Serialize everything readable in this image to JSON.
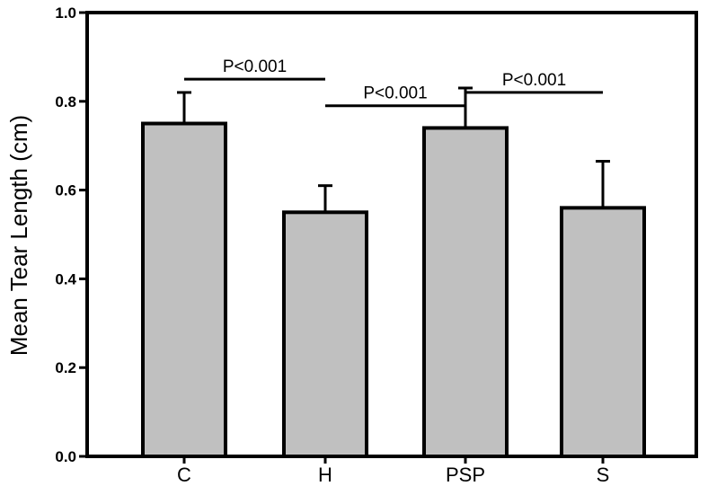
{
  "chart_data": {
    "type": "bar",
    "title": "",
    "xlabel": "",
    "ylabel": "Mean Tear Length (cm)",
    "ylim": [
      0,
      1.0
    ],
    "yticks": [
      "0.0",
      "0.2",
      "0.4",
      "0.6",
      "0.8",
      "1.0"
    ],
    "categories": [
      "C",
      "H",
      "PSP",
      "S"
    ],
    "values": [
      0.75,
      0.55,
      0.74,
      0.56
    ],
    "errors": [
      0.07,
      0.06,
      0.09,
      0.105
    ],
    "bar_color": "#c0c0c0",
    "grid": false,
    "annotations": [
      {
        "text": "P<0.001",
        "from": 0,
        "to": 1,
        "y": 0.85
      },
      {
        "text": "P<0.001",
        "from": 1,
        "to": 2,
        "y": 0.79
      },
      {
        "text": "P<0.001",
        "from": 2,
        "to": 3,
        "y": 0.82
      }
    ]
  }
}
